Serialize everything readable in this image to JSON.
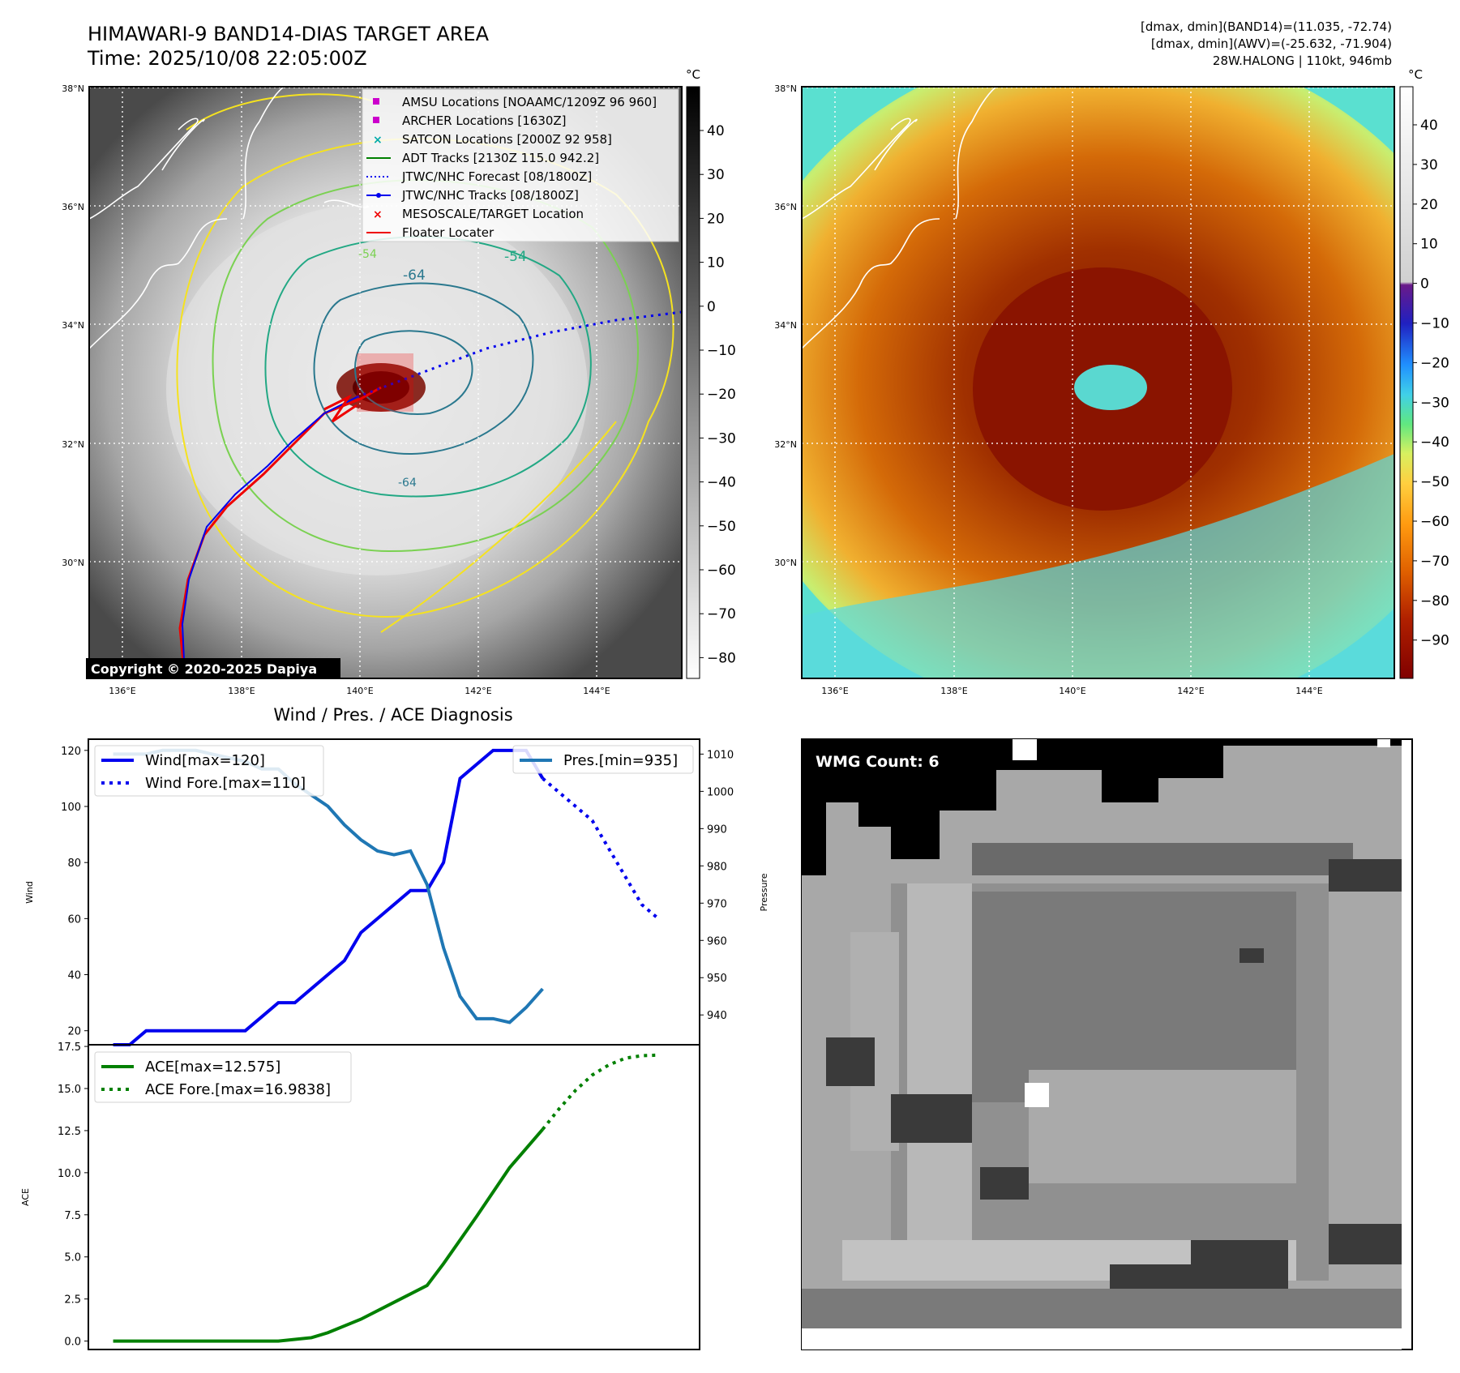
{
  "header": {
    "title_line1": "HIMAWARI-9 BAND14-DIAS TARGET AREA",
    "title_line2": "Time: 2025/10/08 22:05:00Z",
    "dmax_band14": "[dmax, dmin](BAND14)=(11.035, -72.74)",
    "dmax_awv": "[dmax, dmin](AWV)=(-25.632, -71.904)",
    "storm": "28W.HALONG | 110kt, 946mb"
  },
  "map": {
    "lat_labels": [
      "38°N",
      "36°N",
      "34°N",
      "32°N",
      "30°N"
    ],
    "lon_labels": [
      "136°E",
      "138°E",
      "140°E",
      "142°E",
      "144°E"
    ],
    "copyright": "Copyright © 2020-2025 Dapiya",
    "contour_labels": [
      "-64",
      "-54",
      "-54",
      "-64"
    ],
    "legend": [
      {
        "label": "AMSU Locations [NOAAMC/1209Z 96 960]",
        "color": "#cc00cc",
        "marker": "square"
      },
      {
        "label": "ARCHER Locations [1630Z]",
        "color": "#cc00cc",
        "marker": "square"
      },
      {
        "label": "SATCON Locations [2000Z 92 958]",
        "color": "#00aaaa",
        "marker": "x"
      },
      {
        "label": "ADT Tracks [2130Z 115.0 942.2]",
        "color": "#008000",
        "marker": "line"
      },
      {
        "label": "JTWC/NHC Forecast [08/1800Z]",
        "color": "#0000ee",
        "marker": "dotted"
      },
      {
        "label": "JTWC/NHC Tracks [08/1800Z]",
        "color": "#0000ee",
        "marker": "dotline"
      },
      {
        "label": "MESOSCALE/TARGET Location",
        "color": "#ee0000",
        "marker": "x"
      },
      {
        "label": "Floater Locater",
        "color": "#ee0000",
        "marker": "line"
      }
    ]
  },
  "colorbar_band14": {
    "unit": "°C",
    "ticks": [
      "40",
      "30",
      "20",
      "10",
      "0",
      "−10",
      "−20",
      "−30",
      "−40",
      "−50",
      "−60",
      "−70",
      "−80"
    ]
  },
  "colorbar_awv": {
    "unit": "°C",
    "ticks": [
      "40",
      "30",
      "20",
      "10",
      "0",
      "−10",
      "−20",
      "−30",
      "−40",
      "−50",
      "−60",
      "−70",
      "−80",
      "−90"
    ]
  },
  "wmg": {
    "label": "WMG Count: 6"
  },
  "chart_data": [
    {
      "type": "line",
      "title": "Wind / Pres. / ACE Diagnosis",
      "ylabel": "Wind",
      "y2label": "Pressure",
      "ylim": [
        15,
        124
      ],
      "y2lim": [
        932,
        1014
      ],
      "yticks": [
        20,
        40,
        60,
        80,
        100,
        120
      ],
      "y2ticks": [
        940,
        950,
        960,
        970,
        980,
        990,
        1000,
        1010
      ],
      "x": [
        0,
        1,
        2,
        3,
        4,
        5,
        6,
        7,
        8,
        9,
        10,
        11,
        12,
        13,
        14,
        15,
        16,
        17,
        18,
        19,
        20,
        21,
        22,
        23,
        24,
        25,
        26,
        27,
        28,
        29,
        30,
        31,
        32,
        33
      ],
      "series": [
        {
          "name": "Wind[max=120]",
          "color": "#0000ee",
          "style": "solid",
          "x": [
            0,
            1,
            2,
            3,
            4,
            5,
            6,
            7,
            8,
            9,
            10,
            11,
            12,
            13,
            14,
            15,
            16,
            17,
            18,
            19,
            20,
            21,
            22,
            23,
            24,
            25,
            26
          ],
          "values": [
            15,
            15,
            20,
            20,
            20,
            20,
            20,
            20,
            20,
            25,
            30,
            30,
            35,
            40,
            45,
            55,
            60,
            65,
            70,
            70,
            80,
            110,
            115,
            120,
            120,
            120,
            110
          ]
        },
        {
          "name": "Wind Fore.[max=110]",
          "color": "#0000ee",
          "style": "dotted",
          "x": [
            26,
            27,
            28,
            29,
            30,
            31,
            32,
            33
          ],
          "values": [
            110,
            105,
            100,
            95,
            85,
            75,
            65,
            60
          ]
        },
        {
          "name": "Pres.[min=935]",
          "color": "#1f77b4",
          "style": "solid",
          "axis": "right",
          "x": [
            0,
            1,
            2,
            3,
            4,
            5,
            6,
            7,
            8,
            9,
            10,
            11,
            12,
            13,
            14,
            15,
            16,
            17,
            18,
            19,
            20,
            21,
            22,
            23,
            24,
            25,
            26
          ],
          "values": [
            1010,
            1010,
            1010,
            1011,
            1011,
            1011,
            1010,
            1009,
            1008,
            1006,
            1006,
            1002,
            999,
            996,
            991,
            987,
            984,
            983,
            984,
            975,
            958,
            945,
            939,
            939,
            938,
            942,
            947
          ]
        }
      ]
    },
    {
      "type": "line",
      "ylabel": "ACE",
      "ylim": [
        -0.5,
        17.6
      ],
      "yticks": [
        0.0,
        2.5,
        5.0,
        7.5,
        10.0,
        12.5,
        15.0,
        17.5
      ],
      "ytick_labels": [
        "0.0",
        "2.5",
        "5.0",
        "7.5",
        "10.0",
        "12.5",
        "15.0",
        "17.5"
      ],
      "series": [
        {
          "name": "ACE[max=12.575]",
          "color": "#008000",
          "style": "solid",
          "x": [
            0,
            5,
            10,
            12,
            13,
            15,
            17,
            19,
            20,
            22,
            24,
            26
          ],
          "values": [
            0,
            0,
            0,
            0.2,
            0.5,
            1.3,
            2.3,
            3.3,
            4.6,
            7.4,
            10.3,
            12.575
          ]
        },
        {
          "name": "ACE Fore.[max=16.9838]",
          "color": "#008000",
          "style": "dotted",
          "x": [
            26,
            27,
            28,
            29,
            30,
            31,
            32,
            33
          ],
          "values": [
            12.575,
            13.8,
            14.9,
            15.8,
            16.4,
            16.8,
            16.95,
            16.9838
          ]
        }
      ]
    }
  ]
}
